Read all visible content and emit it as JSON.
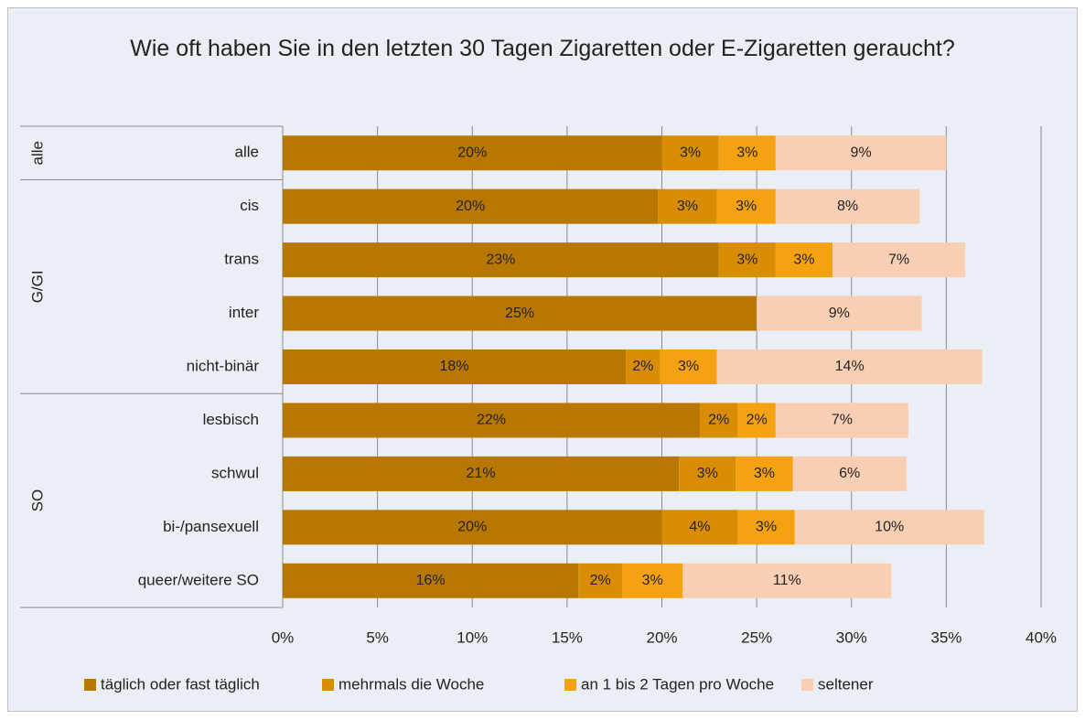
{
  "chart_data": {
    "type": "stacked-barh",
    "title": "Wie oft haben Sie in den letzten 30 Tagen Zigaretten oder E-Zigaretten geraucht?",
    "groups": [
      "alle",
      "G/GI",
      "SO"
    ],
    "categories": [
      "alle",
      "cis",
      "trans",
      "inter",
      "nicht-binär",
      "lesbisch",
      "schwul",
      "bi-/pansexuell",
      "queer/weitere SO"
    ],
    "series": [
      {
        "name": "täglich oder fast täglich",
        "color": "#b87700",
        "values": [
          20,
          19.8,
          23,
          25,
          18.1,
          22,
          20.9,
          20,
          15.6
        ],
        "value_labels": [
          "20%",
          "20%",
          "23%",
          "25%",
          "18%",
          "22%",
          "21%",
          "20%",
          "16%"
        ]
      },
      {
        "name": "mehrmals die Woche",
        "color": "#d88d05",
        "values": [
          3,
          3.1,
          3,
          0,
          1.8,
          2,
          3,
          4,
          2.3
        ],
        "value_labels": [
          "3%",
          "3%",
          "3%",
          null,
          "2%",
          "2%",
          "3%",
          "4%",
          "2%"
        ]
      },
      {
        "name": "an 1 bis 2 Tagen pro Woche",
        "color": "#f4a212",
        "values": [
          3,
          3.1,
          3,
          0,
          3,
          2,
          3,
          3,
          3.2
        ],
        "value_labels": [
          "3%",
          "3%",
          "3%",
          null,
          "3%",
          "2%",
          "3%",
          "3%",
          "3%"
        ]
      },
      {
        "name": "seltener",
        "color": "#f9cfb4",
        "values": [
          9,
          7.6,
          7,
          8.7,
          14,
          7,
          6,
          10,
          11
        ],
        "value_labels": [
          "9%",
          "8%",
          "7%",
          "9%",
          "14%",
          "7%",
          "6%",
          "10%",
          "11%"
        ]
      }
    ],
    "xlim": [
      0,
      40
    ],
    "xticks": [
      {
        "value": 0,
        "label": "0%"
      },
      {
        "value": 5,
        "label": "5%"
      },
      {
        "value": 10,
        "label": "10%"
      },
      {
        "value": 15,
        "label": "15%"
      },
      {
        "value": 20,
        "label": "20%"
      },
      {
        "value": 25,
        "label": "25%"
      },
      {
        "value": 30,
        "label": "30%"
      },
      {
        "value": 35,
        "label": "35%"
      },
      {
        "value": 40,
        "label": "40%"
      }
    ],
    "grid": true,
    "legend": "bottom"
  }
}
